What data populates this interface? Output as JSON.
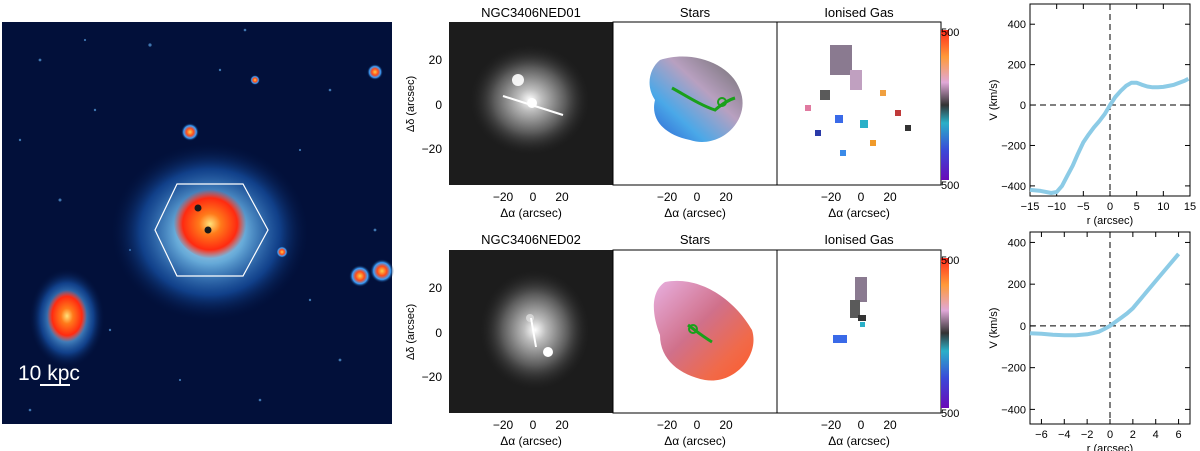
{
  "overview": {
    "scale_label": "10 kpc"
  },
  "galaxies": [
    {
      "name": "NGC3406NED01",
      "panels": {
        "stars": "Stars",
        "gas": "Ionised Gas"
      },
      "axes": {
        "ylabel": "Δδ (arcsec)",
        "xlabel": "Δα (arcsec)",
        "y_ticks": [
          "20",
          "0",
          "−20"
        ],
        "x_ticks": [
          "−20",
          "0",
          "20"
        ]
      },
      "colorbar": {
        "top": "500",
        "bottom": "500"
      }
    },
    {
      "name": "NGC3406NED02",
      "panels": {
        "stars": "Stars",
        "gas": "Ionised Gas"
      },
      "axes": {
        "ylabel": "Δδ (arcsec)",
        "xlabel": "Δα (arcsec)",
        "y_ticks": [
          "20",
          "0",
          "−20"
        ],
        "x_ticks": [
          "−20",
          "0",
          "20"
        ]
      },
      "colorbar": {
        "top": "500",
        "bottom": "500"
      }
    }
  ],
  "colors": {
    "curve": "#8ccbe6",
    "background_map": "#02103a",
    "core": "#ff3a1a"
  },
  "chart_data": [
    {
      "type": "line",
      "title": "",
      "xlabel": "r (arcsec)",
      "ylabel": "V (km/s)",
      "xlim": [
        -15,
        15
      ],
      "ylim": [
        -450,
        500
      ],
      "x_ticks": [
        "−15",
        "−10",
        "−5",
        "0",
        "5",
        "10",
        "15"
      ],
      "y_ticks": [
        "400",
        "200",
        "0",
        "−200",
        "−400"
      ],
      "x_tick_values": [
        -15,
        -10,
        -5,
        0,
        5,
        10,
        15
      ],
      "y_tick_values": [
        400,
        200,
        0,
        -200,
        -400
      ],
      "series": [
        {
          "x": [
            -15,
            -13,
            -11,
            -10,
            -9,
            -8,
            -7,
            -6,
            -5,
            -4,
            -3,
            -2,
            -1,
            0,
            1,
            2,
            3,
            4,
            5,
            6,
            7,
            8,
            9,
            10,
            11,
            12,
            13,
            14,
            14.7
          ],
          "y": [
            -420,
            -425,
            -435,
            -430,
            -400,
            -350,
            -300,
            -240,
            -185,
            -145,
            -110,
            -80,
            -45,
            0,
            40,
            70,
            95,
            110,
            110,
            100,
            92,
            88,
            88,
            90,
            95,
            100,
            110,
            120,
            130
          ]
        }
      ]
    },
    {
      "type": "line",
      "title": "",
      "xlabel": "r (arcsec)",
      "ylabel": "V (km/s)",
      "xlim": [
        -7,
        7
      ],
      "ylim": [
        -470,
        450
      ],
      "x_ticks": [
        "−6",
        "−4",
        "−2",
        "0",
        "2",
        "4",
        "6"
      ],
      "y_ticks": [
        "400",
        "200",
        "0",
        "−200",
        "−400"
      ],
      "x_tick_values": [
        -6,
        -4,
        -2,
        0,
        2,
        4,
        6
      ],
      "y_tick_values": [
        400,
        200,
        0,
        -200,
        -400
      ],
      "series": [
        {
          "x": [
            -7,
            -6,
            -5,
            -4,
            -3,
            -2,
            -1.5,
            -1,
            -0.5,
            0,
            0.5,
            1,
            1.5,
            2,
            3,
            4,
            5,
            6
          ],
          "y": [
            -35,
            -38,
            -42,
            -45,
            -45,
            -40,
            -35,
            -28,
            -15,
            0,
            20,
            40,
            60,
            85,
            150,
            215,
            280,
            345
          ]
        }
      ]
    }
  ]
}
